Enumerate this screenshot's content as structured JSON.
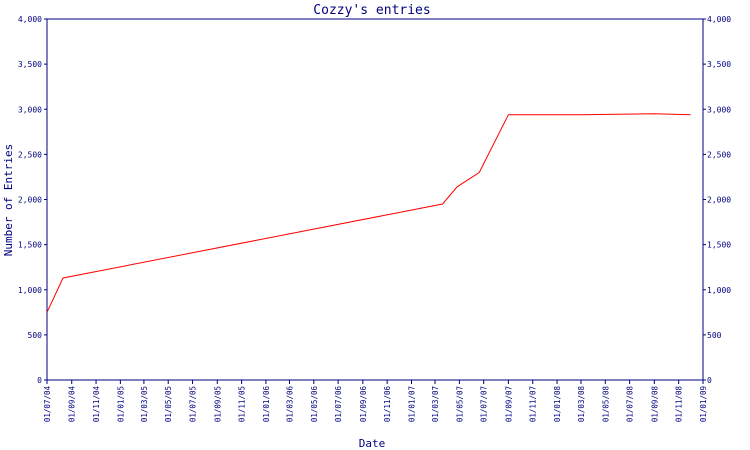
{
  "chart_data": {
    "type": "line",
    "title": "Cozzy's entries",
    "xlabel": "Date",
    "ylabel": "Number of Entries",
    "ylim": [
      0,
      4000
    ],
    "y_ticks": [
      0,
      500,
      1000,
      1500,
      2000,
      2500,
      3000,
      3500,
      4000
    ],
    "y_tick_labels": [
      "0",
      "500",
      "1,000",
      "1,500",
      "2,000",
      "2,500",
      "3,000",
      "3,500",
      "4,000"
    ],
    "x_range": [
      "2004-07-01",
      "2009-01-01"
    ],
    "x_ticks": [
      "2004-07-01",
      "2004-09-01",
      "2004-11-01",
      "2005-01-01",
      "2005-03-01",
      "2005-05-01",
      "2005-07-01",
      "2005-09-01",
      "2005-11-01",
      "2006-01-01",
      "2006-03-01",
      "2006-05-01",
      "2006-07-01",
      "2006-09-01",
      "2006-11-01",
      "2007-01-01",
      "2007-03-01",
      "2007-05-01",
      "2007-07-01",
      "2007-09-01",
      "2007-11-01",
      "2008-01-01",
      "2008-03-01",
      "2008-05-01",
      "2008-07-01",
      "2008-09-01",
      "2008-11-01",
      "2009-01-01"
    ],
    "x_tick_labels": [
      "01/07/04",
      "01/09/04",
      "01/11/04",
      "01/01/05",
      "01/03/05",
      "01/05/05",
      "01/07/05",
      "01/09/05",
      "01/11/05",
      "01/01/06",
      "01/03/06",
      "01/05/06",
      "01/07/06",
      "01/09/06",
      "01/11/06",
      "01/01/07",
      "01/03/07",
      "01/05/07",
      "01/07/07",
      "01/09/07",
      "01/11/07",
      "01/01/08",
      "01/03/08",
      "01/05/08",
      "01/07/08",
      "01/09/08",
      "01/11/08",
      "01/01/09"
    ],
    "grid": false,
    "colors": {
      "axis": "#000080",
      "series": "#ff0000",
      "text": "#000080"
    },
    "series": [
      {
        "x": [
          "2004-07-01",
          "2004-08-10",
          "2007-03-20",
          "2007-04-25",
          "2007-06-20",
          "2007-09-01",
          "2008-03-01",
          "2008-09-01",
          "2008-12-01"
        ],
        "y": [
          750,
          1130,
          1950,
          2140,
          2300,
          2940,
          2940,
          2950,
          2940
        ]
      }
    ]
  }
}
